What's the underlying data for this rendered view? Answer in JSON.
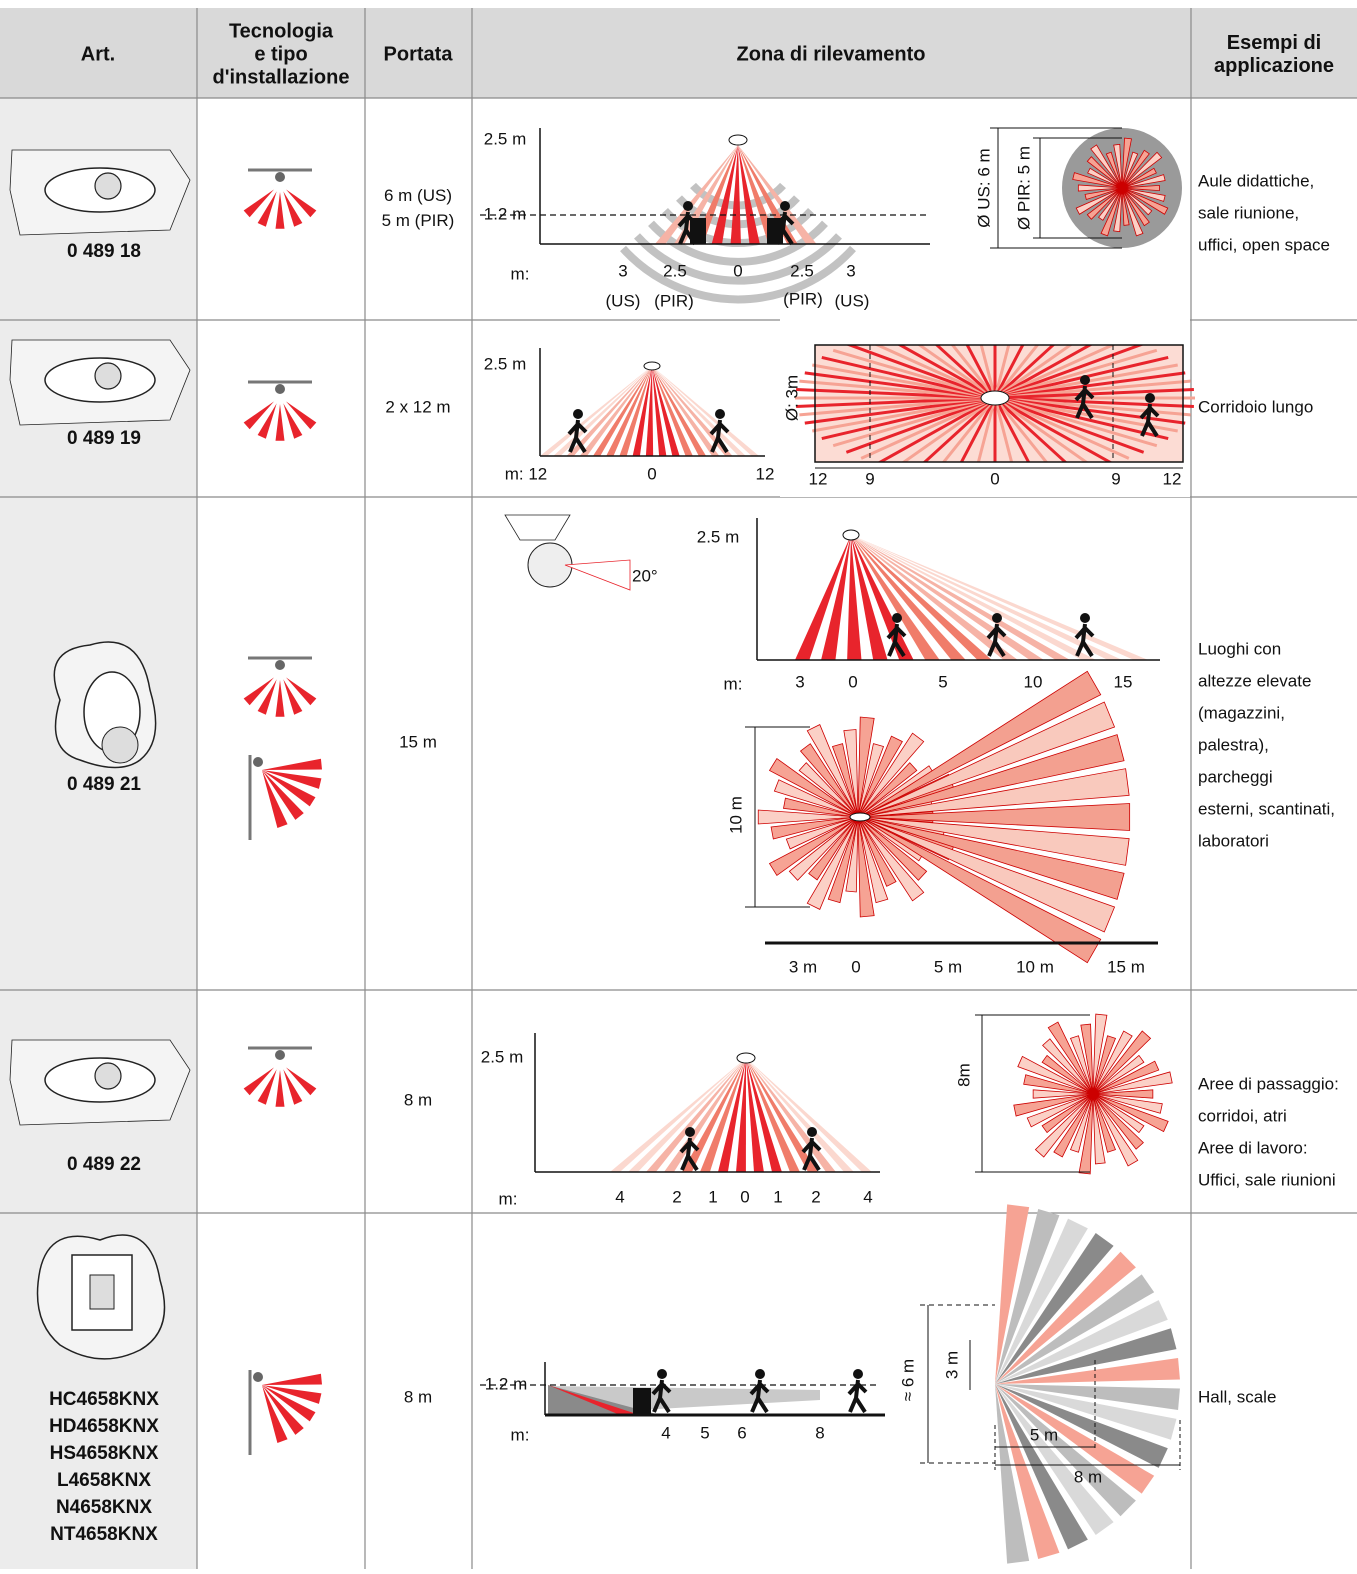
{
  "table": {
    "headers": [
      [
        "Art."
      ],
      [
        "Tecnologia",
        "e tipo",
        "d'installazione"
      ],
      [
        "Portata"
      ],
      [
        "Zona di rilevamento"
      ],
      [
        "Esempi di",
        "applicazione"
      ]
    ],
    "rows": [
      {
        "art": [
          "0 489 18"
        ],
        "range": [
          "6 m (US)",
          "5 m (PIR)"
        ],
        "diagram_labels": [
          "2.5 m",
          "1.2 m",
          "m:",
          "3",
          "2.5",
          "0",
          "2.5",
          "3",
          "(US)",
          "(PIR)",
          "(PIR)",
          "(US)",
          "Ø US: 6 m",
          "Ø PIR: 5 m"
        ],
        "application": [
          "Aule didattiche,",
          "sale riunione,",
          "uffici, open space"
        ]
      },
      {
        "art": [
          "0 489 19"
        ],
        "range": [
          "2 x 12 m"
        ],
        "diagram_labels": [
          "2.5 m",
          "m: 12",
          "0",
          "12",
          "Ø: 3m",
          "12",
          "9",
          "0",
          "9",
          "12"
        ],
        "application": [
          "Corridoio lungo"
        ]
      },
      {
        "art": [
          "0 489 21"
        ],
        "range": [
          "15 m"
        ],
        "diagram_labels": [
          "20°",
          "2.5 m",
          "m:",
          "3",
          "0",
          "5",
          "10",
          "15",
          "10 m",
          "3 m",
          "0",
          "5 m",
          "10 m",
          "15 m"
        ],
        "application": [
          "Luoghi con",
          "altezze elevate",
          "(magazzini,",
          "palestra),",
          "parcheggi",
          "esterni, scantinati,",
          "laboratori"
        ]
      },
      {
        "art": [
          "0 489 22"
        ],
        "range": [
          "8 m"
        ],
        "diagram_labels": [
          "2.5 m",
          "m:",
          "4",
          "2",
          "1",
          "0",
          "1",
          "2",
          "4",
          "8m"
        ],
        "application": [
          "Aree di passaggio:",
          "corridoi, atri",
          "Aree di lavoro:",
          "Uffici, sale riunioni"
        ]
      },
      {
        "art": [
          "HC4658KNX",
          "HD4658KNX",
          "HS4658KNX",
          "L4658KNX",
          "N4658KNX",
          "NT4658KNX"
        ],
        "range": [
          "8 m"
        ],
        "diagram_labels": [
          "1.2 m",
          "m:",
          "4",
          "5",
          "6",
          "8",
          "≈ 6 m",
          "3 m",
          "5 m",
          "8 m"
        ],
        "application": [
          "Hall, scale"
        ]
      }
    ]
  }
}
